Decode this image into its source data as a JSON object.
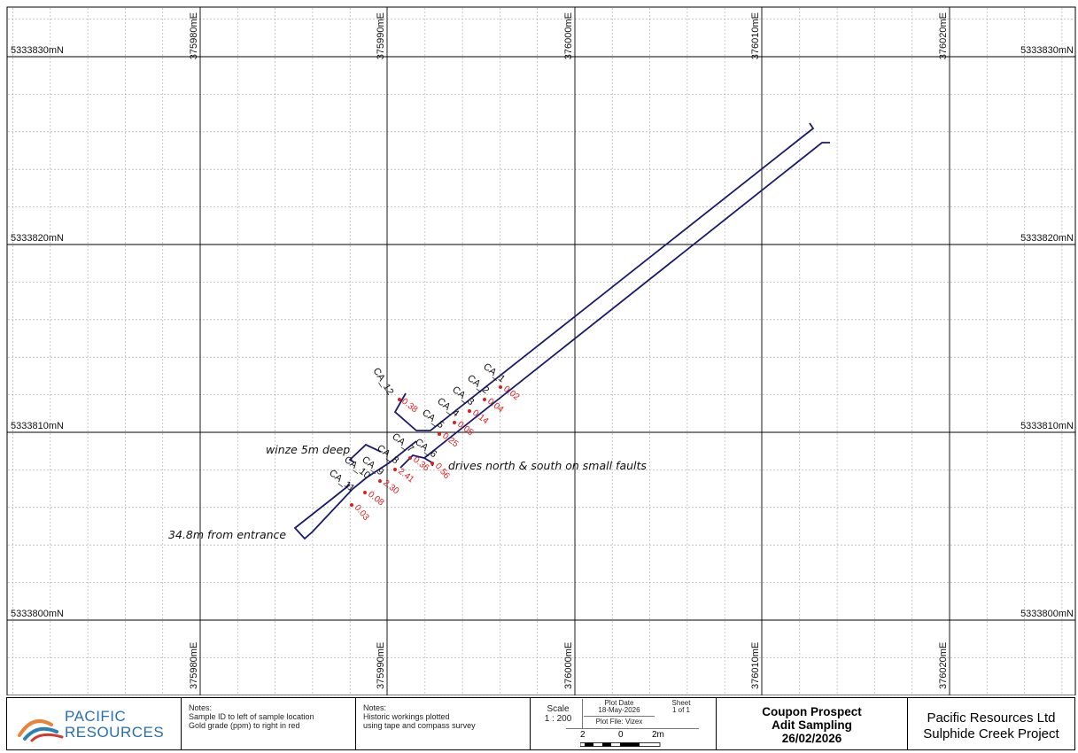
{
  "map": {
    "northings": [
      "5333830mN",
      "5333820mN",
      "5333810mN",
      "5333800mN"
    ],
    "eastings": [
      "375980mE",
      "375990mE",
      "376000mE",
      "376010mE",
      "376020mE"
    ],
    "samples": [
      {
        "id": "CA_1",
        "grade": "0.02"
      },
      {
        "id": "CA_2",
        "grade": "0.04"
      },
      {
        "id": "CA_3",
        "grade": "0.14"
      },
      {
        "id": "CA_4",
        "grade": "0.05"
      },
      {
        "id": "CA_5",
        "grade": "0.25"
      },
      {
        "id": "CA_6",
        "grade": "0.56"
      },
      {
        "id": "CA_7",
        "grade": "0.36"
      },
      {
        "id": "CA_8",
        "grade": "2.41"
      },
      {
        "id": "CA_9",
        "grade": "2.30"
      },
      {
        "id": "CA_10",
        "grade": "0.08"
      },
      {
        "id": "CA_11",
        "grade": "0.03"
      },
      {
        "id": "CA_12",
        "grade": "0.38"
      }
    ],
    "annotations": {
      "winze": "winze 5m deep",
      "drives": "drives north & south on small faults",
      "entrance": "34.8m from entrance"
    },
    "colors": {
      "workings": "#1a1a6e",
      "grade": "#e01b1b",
      "grid_major": "#000000",
      "grid_minor": "#b8b8b8"
    }
  },
  "titleblock": {
    "logo": {
      "line1": "PACIFIC",
      "line2": "RESOURCES"
    },
    "notes1": {
      "heading": "Notes:",
      "line1": "Sample ID to left of sample location",
      "line2": "Gold grade (ppm) to right in red"
    },
    "notes2": {
      "heading": "Notes:",
      "line1": "Historic workings plotted",
      "line2": "using tape and compass survey"
    },
    "scale": {
      "label": "Scale",
      "value": "1 : 200",
      "bar_left": "2",
      "bar_mid": "0",
      "bar_right": "2m"
    },
    "plot": {
      "date_label": "Plot Date",
      "date": "18-May-2026",
      "sheet_label": "Sheet",
      "sheet": "1 of 1",
      "file": "Plot File: Vizex"
    },
    "title": {
      "line1": "Coupon Prospect",
      "line2": "Adit Sampling",
      "line3": "26/02/2026"
    },
    "company": {
      "line1": "Pacific Resources Ltd",
      "line2": "Sulphide Creek Project"
    }
  }
}
